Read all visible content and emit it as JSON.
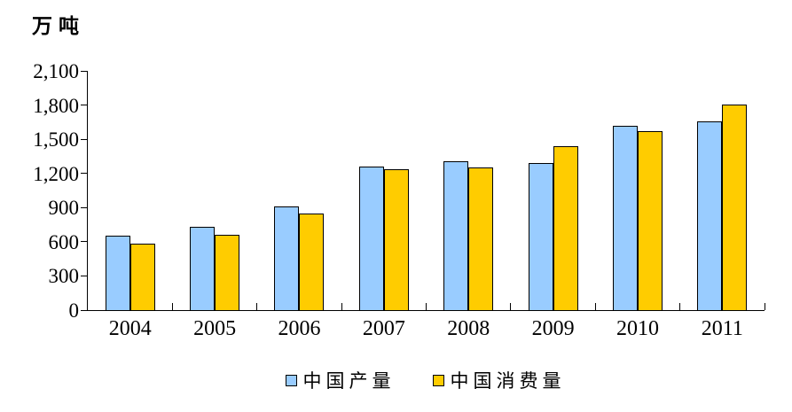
{
  "unit_label": "万吨",
  "colors": {
    "production_fill": "#99CCFF",
    "consumption_fill": "#FFCC00",
    "bar_border": "#000000",
    "axis": "#000000",
    "text": "#000000"
  },
  "chart_data": {
    "type": "bar",
    "title": "",
    "xlabel": "",
    "ylabel": "万吨",
    "categories": [
      "2004",
      "2005",
      "2006",
      "2007",
      "2008",
      "2009",
      "2010",
      "2011"
    ],
    "series": [
      {
        "name": "中国产量",
        "color_key": "production_fill",
        "values": [
          650,
          730,
          910,
          1260,
          1310,
          1290,
          1615,
          1660
        ]
      },
      {
        "name": "中国消费量",
        "color_key": "consumption_fill",
        "values": [
          580,
          665,
          845,
          1235,
          1255,
          1440,
          1570,
          1805
        ]
      }
    ],
    "ylim": [
      0,
      2100
    ],
    "ytick_interval": 300,
    "yticks": [
      {
        "value": 0,
        "label": "0"
      },
      {
        "value": 300,
        "label": "300"
      },
      {
        "value": 600,
        "label": "600"
      },
      {
        "value": 900,
        "label": "900"
      },
      {
        "value": 1200,
        "label": "1,200"
      },
      {
        "value": 1500,
        "label": "1,500"
      },
      {
        "value": 1800,
        "label": "1,800"
      },
      {
        "value": 2100,
        "label": "2,100"
      }
    ],
    "grid": false,
    "legend_position": "bottom-center"
  }
}
